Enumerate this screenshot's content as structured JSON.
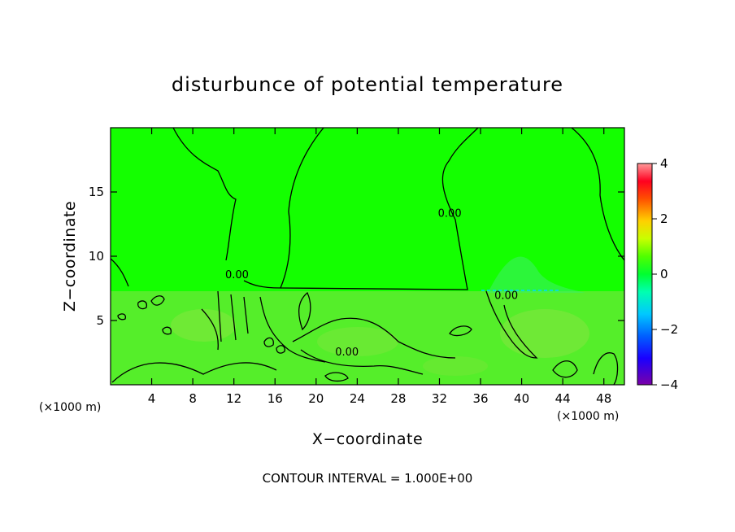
{
  "chart_data": {
    "type": "heatmap",
    "title": "disturbunce of potential temperature",
    "xlabel": "X−coordinate",
    "ylabel": "Z−coordinate",
    "x_unit": "(×1000 m)",
    "x_ticks": [
      4,
      8,
      12,
      16,
      20,
      24,
      28,
      32,
      36,
      40,
      44,
      48
    ],
    "y_ticks": [
      5,
      10,
      15
    ],
    "xlim": [
      0,
      50
    ],
    "ylim": [
      0,
      20
    ],
    "colorbar": {
      "ticks": [
        -4,
        -2,
        0,
        2,
        4
      ],
      "range": [
        -4,
        4
      ]
    },
    "contour_labels": [
      {
        "text": "0.00",
        "x": 38.5,
        "z": 7.0
      },
      {
        "text": "0.00",
        "x": 23,
        "z": 2.6
      },
      {
        "text": "0.00",
        "x": 12.3,
        "z": 8.6
      },
      {
        "text": "0.00",
        "x": 33,
        "z": 13.4
      }
    ],
    "footer": "CONTOUR INTERVAL = 1.000E+00"
  }
}
